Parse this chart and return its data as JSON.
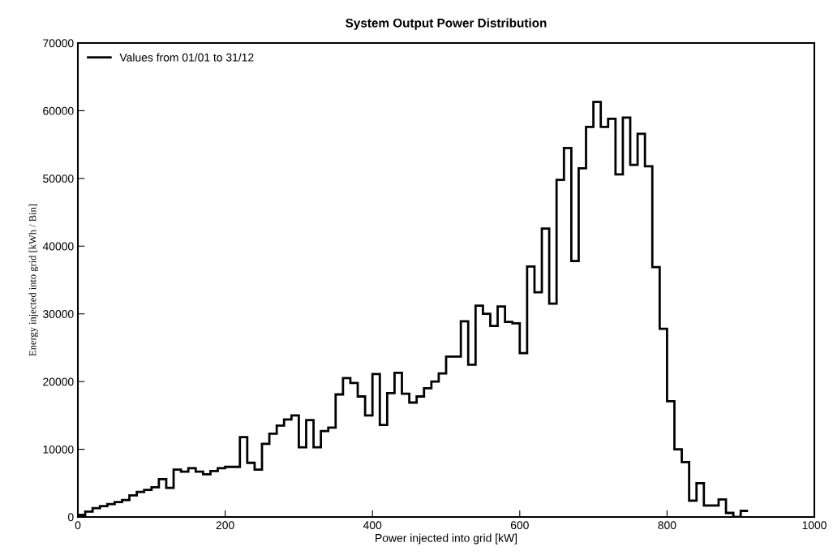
{
  "chart_data": {
    "type": "histogram",
    "title": "System Output Power Distribution",
    "xlabel": "Power injected into grid [kW]",
    "ylabel": "Energy injected into grid [kWh / Bin]",
    "bins": [
      0,
      10,
      20,
      30,
      40,
      50,
      60,
      70,
      80,
      90,
      100,
      110,
      120,
      130,
      140,
      150,
      160,
      170,
      180,
      190,
      200,
      210,
      220,
      230,
      240,
      250,
      260,
      270,
      280,
      290,
      300,
      310,
      320,
      330,
      340,
      350,
      360,
      370,
      380,
      390,
      400,
      410,
      420,
      430,
      440,
      450,
      460,
      470,
      480,
      490,
      500,
      510,
      520,
      530,
      540,
      550,
      560,
      570,
      580,
      590,
      600,
      610,
      620,
      630,
      640,
      650,
      660,
      670,
      680,
      690,
      700,
      710,
      720,
      730,
      740,
      750,
      760,
      770,
      780,
      790,
      800,
      810,
      820,
      830,
      840,
      850,
      860,
      870,
      880,
      890,
      900,
      910
    ],
    "series": [
      {
        "name": "Values from 01/01 to 31/12",
        "color": "#000000",
        "values": [
          300,
          800,
          1300,
          1600,
          1900,
          2200,
          2500,
          3200,
          3700,
          4000,
          4400,
          5600,
          4300,
          7000,
          6700,
          7200,
          6700,
          6300,
          6800,
          7200,
          7400,
          7400,
          11800,
          8000,
          7000,
          10800,
          12300,
          13500,
          14400,
          15000,
          10300,
          14300,
          10300,
          12700,
          13200,
          18100,
          20500,
          19800,
          17800,
          15000,
          21100,
          13600,
          18300,
          21300,
          18200,
          16900,
          17800,
          19000,
          20000,
          21200,
          23700,
          23700,
          28900,
          22500,
          31200,
          30000,
          28200,
          31100,
          28800,
          28600,
          24200,
          37000,
          33200,
          42600,
          31500,
          49800,
          54500,
          37800,
          51500,
          57600,
          61300,
          57600,
          58800,
          50600,
          59000,
          52000,
          56600,
          51800,
          36900,
          27800,
          17100,
          10000,
          8100,
          2400,
          5000,
          1700,
          1700,
          2600,
          600,
          0,
          900
        ]
      }
    ],
    "xlim": [
      0,
      1000
    ],
    "xticks": [
      0,
      200,
      400,
      600,
      800,
      1000
    ],
    "ylim": [
      0,
      70000
    ],
    "yticks": [
      0,
      10000,
      20000,
      30000,
      40000,
      50000,
      60000,
      70000
    ],
    "grid": false,
    "legend": "top left"
  }
}
